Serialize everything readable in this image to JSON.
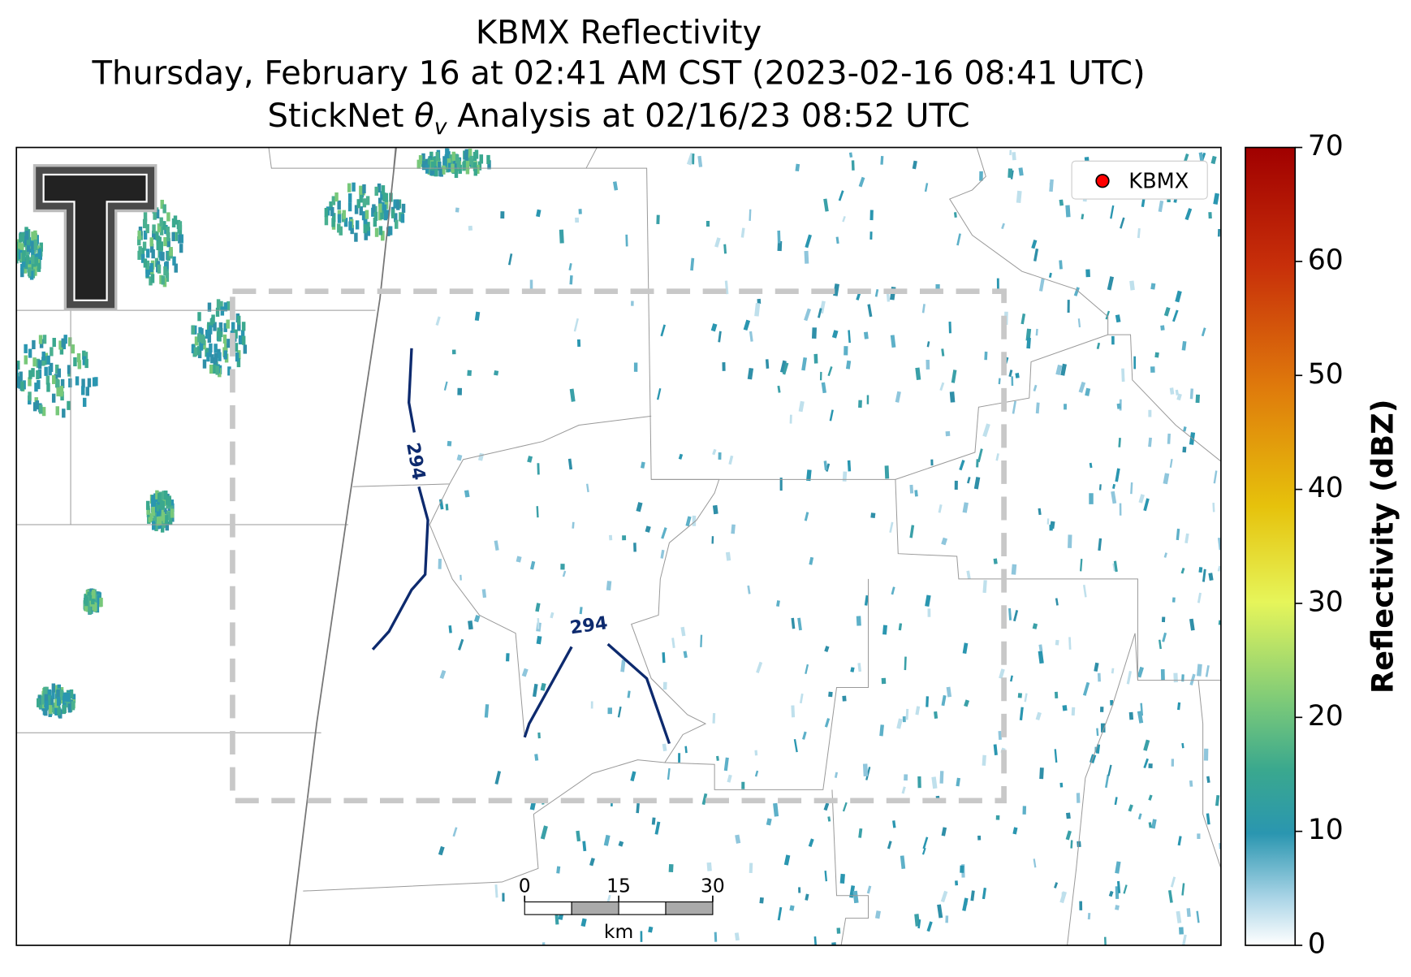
{
  "title": {
    "line1": "KBMX Reflectivity",
    "line2": "Thursday, February 16 at 02:41 AM CST (2023-02-16 08:41 UTC)",
    "line3_prefix": "StickNet ",
    "line3_symbol": "θ",
    "line3_subscript": "v",
    "line3_suffix": " Analysis at 02/16/23 08:52 UTC"
  },
  "legend": {
    "label": "KBMX",
    "color": "#ff0000"
  },
  "contours": {
    "labels": [
      "294",
      "294"
    ],
    "color": "#0d2a6e"
  },
  "scale_bar": {
    "ticks": [
      0,
      15,
      30
    ],
    "unit": "km"
  },
  "colorbar": {
    "label": "Reflectivity (dBZ)",
    "lim": [
      0,
      70
    ],
    "ticks": [
      0,
      10,
      20,
      30,
      40,
      50,
      60,
      70
    ]
  }
}
